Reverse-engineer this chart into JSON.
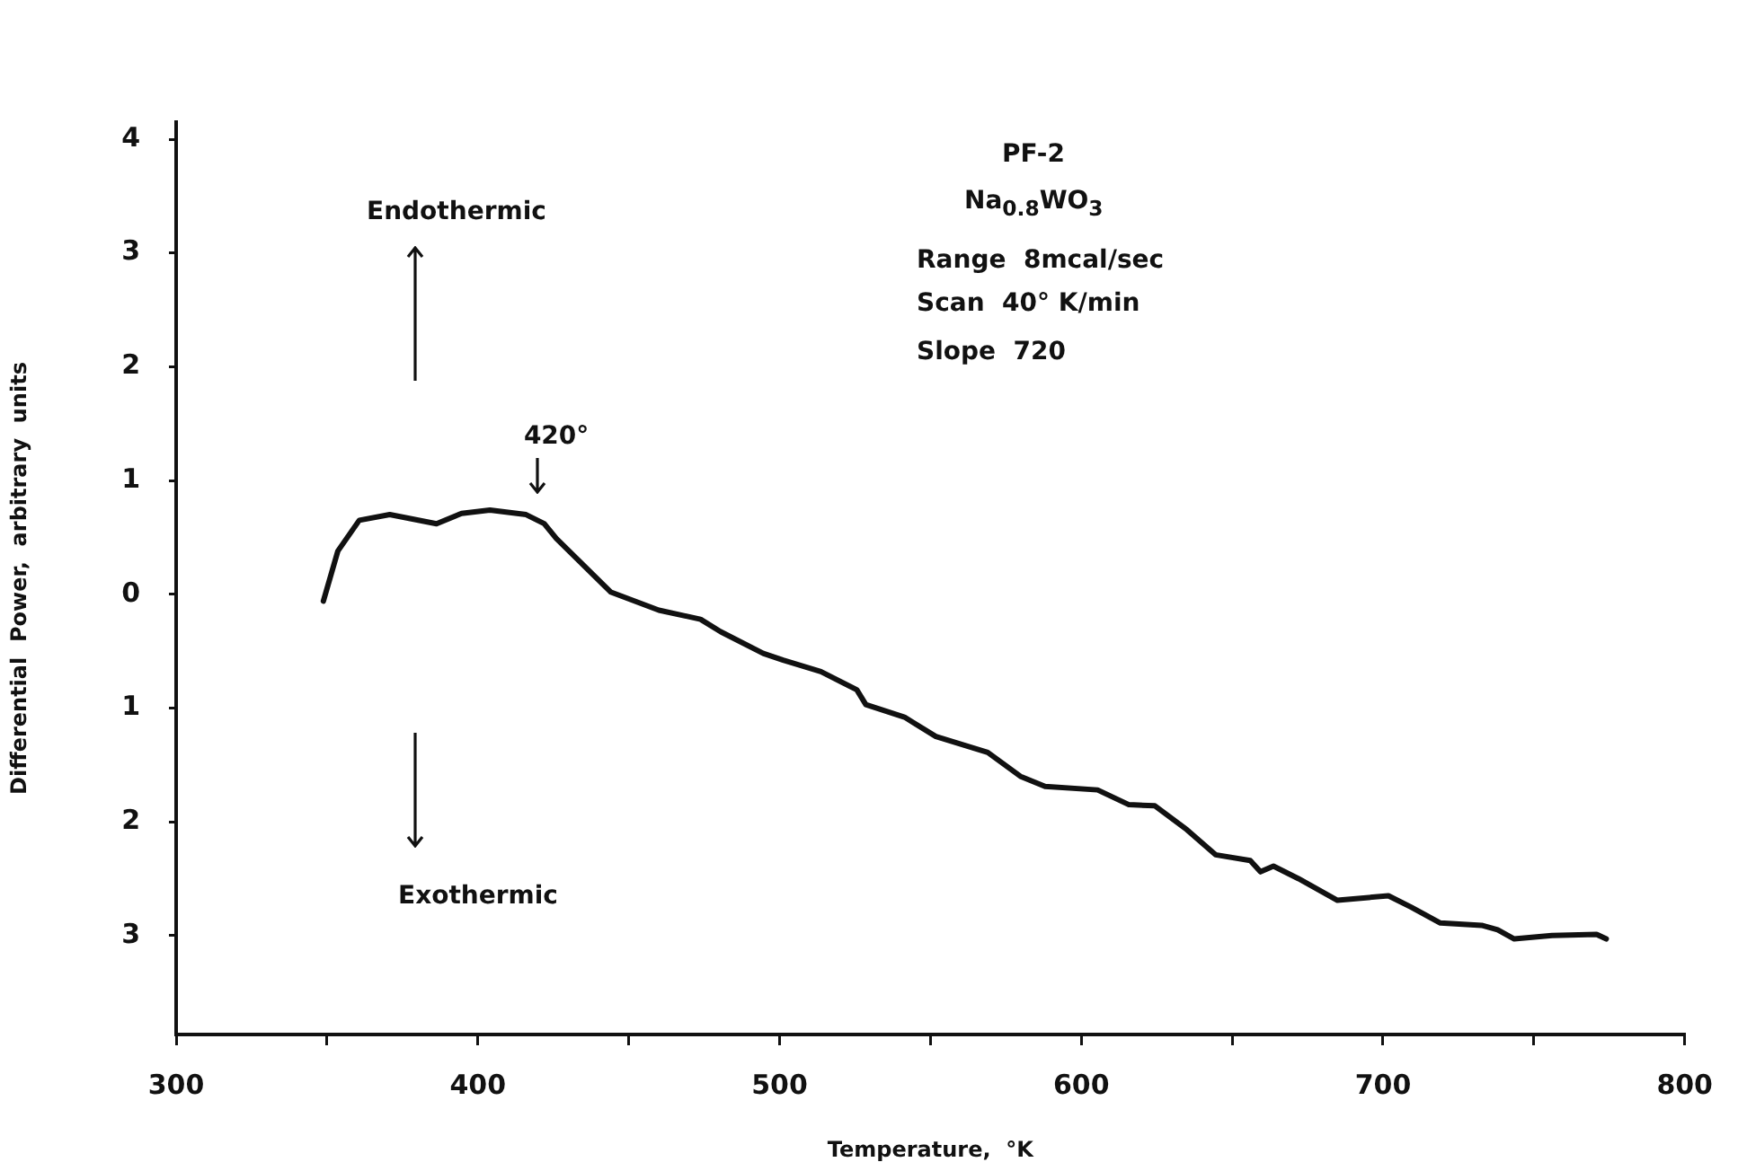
{
  "chart_data": {
    "type": "line",
    "xlabel": "Temperature,  °K",
    "ylabel": "Differential  Power,  arbitrary  units",
    "x": [
      348.8,
      353.6,
      360.7,
      370.8,
      386.3,
      394.6,
      404,
      416,
      422,
      426,
      444,
      460,
      473.8,
      480.5,
      494.6,
      501.2,
      513.7,
      525.6,
      528.6,
      541.4,
      551.8,
      569,
      579.8,
      588,
      605.4,
      615.8,
      624.4,
      635,
      644.5,
      656,
      659.4,
      663.7,
      672,
      684.9,
      701.8,
      709.3,
      719,
      732.7,
      738,
      743.5,
      756,
      770.8,
      774
    ],
    "series": [
      {
        "color": "#111111",
        "values": [
          -0.06,
          0.38,
          0.65,
          0.7,
          0.62,
          0.71,
          0.74,
          0.7,
          0.62,
          0.49,
          0.02,
          -0.14,
          -0.22,
          -0.33,
          -0.52,
          -0.58,
          -0.68,
          -0.84,
          -0.97,
          -1.08,
          -1.25,
          -1.39,
          -1.6,
          -1.69,
          -1.72,
          -1.85,
          -1.86,
          -2.07,
          -2.29,
          -2.34,
          -2.44,
          -2.39,
          -2.5,
          -2.69,
          -2.65,
          -2.75,
          -2.89,
          -2.91,
          -2.95,
          -3.03,
          -3.0,
          -2.99,
          -3.03
        ]
      }
    ],
    "xlim": [
      300,
      800
    ],
    "xticks": [
      300,
      {
        "value": 350,
        "label": null
      },
      400,
      {
        "value": 450,
        "label": null
      },
      500,
      {
        "value": 550,
        "label": null
      },
      600,
      {
        "value": 650,
        "label": null
      },
      700,
      {
        "value": 750,
        "label": null
      },
      800
    ],
    "ylim": [
      -3.87,
      4.15
    ],
    "yticks": [
      {
        "value": -3,
        "label": "3"
      },
      {
        "value": -2,
        "label": "2"
      },
      {
        "value": -1,
        "label": "1"
      },
      0,
      1,
      2,
      3,
      4
    ],
    "marker": "none",
    "line_style": "solid",
    "annotations": [
      "Endothermic",
      "Exothermic",
      {
        "text": "420°",
        "x": 420,
        "y": 0.7
      },
      "PF-2",
      "Na$_{0.8}$WO$_{3}$",
      "Range  8mcal/sec",
      "Scan  40° K/min",
      "Slope  720"
    ]
  }
}
